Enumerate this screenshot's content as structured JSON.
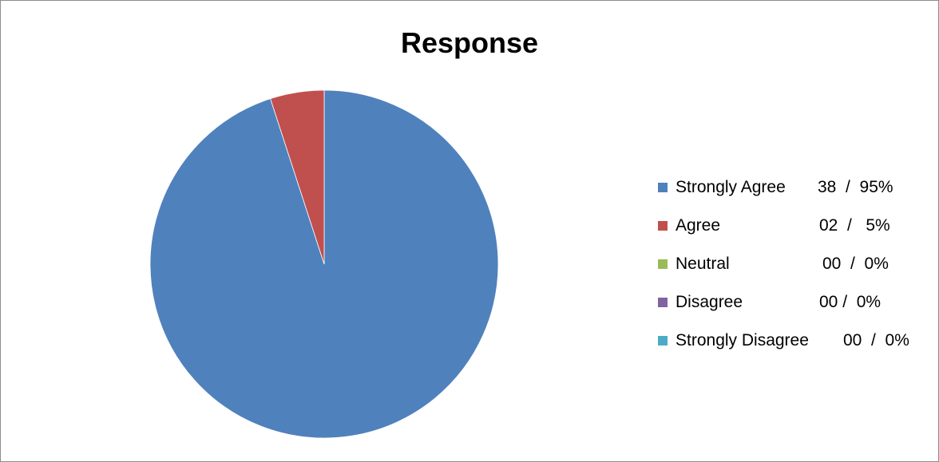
{
  "chart_data": {
    "type": "pie",
    "title": "Response",
    "legend_position": "right",
    "slices": [
      {
        "label": "Strongly Agree",
        "value": 38,
        "percent": 95,
        "value_text": "38  /  95%",
        "color": "#4f81bd"
      },
      {
        "label": "Agree",
        "value": 2,
        "percent": 5,
        "value_text": "02  /   5%",
        "color": "#c0504d"
      },
      {
        "label": "Neutral",
        "value": 0,
        "percent": 0,
        "value_text": "00  /  0%",
        "color": "#9bbb59"
      },
      {
        "label": "Disagree",
        "value": 0,
        "percent": 0,
        "value_text": "00 /  0%",
        "color": "#8064a2"
      },
      {
        "label": "Strongly Disagree",
        "value": 0,
        "percent": 0,
        "value_text": "00  /  0%",
        "color": "#4bacc6"
      }
    ]
  }
}
